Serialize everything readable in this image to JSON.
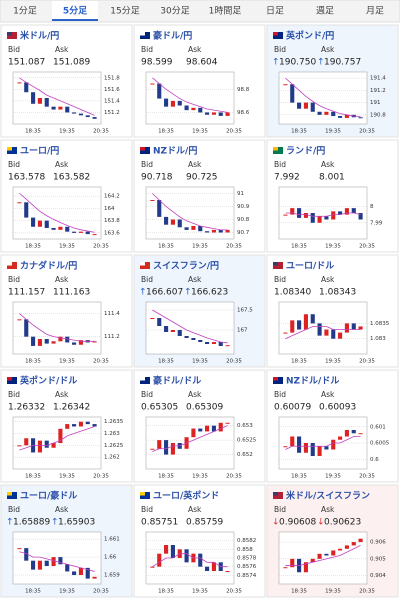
{
  "tabs": {
    "items": [
      "1分足",
      "5分足",
      "15分足",
      "30分足",
      "1時間足",
      "日足",
      "週足",
      "月足"
    ],
    "active": 1
  },
  "labels": {
    "bid": "Bid",
    "ask": "Ask"
  },
  "time_labels": [
    "18:35",
    "19:35",
    "20:35"
  ],
  "panels": [
    {
      "title": "米ドル/円",
      "bid": "151.087",
      "ask": "151.089",
      "ylim": [
        151.0,
        151.9
      ],
      "yticks": [
        151.8,
        151.6,
        151.4,
        151.2
      ],
      "closes": [
        151.72,
        151.55,
        151.35,
        151.45,
        151.3,
        151.25,
        151.3,
        151.2,
        151.18,
        151.15,
        151.12,
        151.09
      ],
      "ma": [
        151.8,
        151.72,
        151.65,
        151.58,
        151.5,
        151.45,
        151.4,
        151.35,
        151.3,
        151.25,
        151.2,
        151.15
      ]
    },
    {
      "title": "豪ドル/円",
      "bid": "98.599",
      "ask": "98.604",
      "ylim": [
        98.5,
        98.95
      ],
      "yticks": [
        98.8,
        98.6
      ],
      "closes": [
        98.85,
        98.72,
        98.65,
        98.7,
        98.66,
        98.62,
        98.64,
        98.6,
        98.58,
        98.6,
        98.57,
        98.6
      ],
      "ma": [
        98.9,
        98.85,
        98.8,
        98.76,
        98.72,
        98.69,
        98.67,
        98.65,
        98.63,
        98.62,
        98.61,
        98.6
      ]
    },
    {
      "title": "英ポンド/円",
      "trend": "↑",
      "bid": "190.750",
      "ask": "190.757",
      "ylim": [
        190.65,
        191.5
      ],
      "yticks": [
        191.4,
        191.2,
        191,
        190.8
      ],
      "closes": [
        191.3,
        191.0,
        190.9,
        191.0,
        190.85,
        190.8,
        190.85,
        190.78,
        190.75,
        190.8,
        190.76,
        190.75
      ],
      "ma": [
        191.4,
        191.3,
        191.2,
        191.1,
        191.02,
        190.95,
        190.9,
        190.86,
        190.82,
        190.8,
        190.78,
        190.77
      ]
    },
    {
      "title": "ユーロ/円",
      "bid": "163.578",
      "ask": "163.582",
      "ylim": [
        163.5,
        164.35
      ],
      "yticks": [
        164.2,
        164,
        163.8,
        163.6
      ],
      "closes": [
        164.1,
        163.85,
        163.7,
        163.8,
        163.68,
        163.65,
        163.7,
        163.62,
        163.6,
        163.62,
        163.58,
        163.58
      ],
      "ma": [
        164.25,
        164.15,
        164.05,
        163.95,
        163.88,
        163.82,
        163.77,
        163.72,
        163.68,
        163.65,
        163.63,
        163.61
      ]
    },
    {
      "title": "NZドル/円",
      "bid": "90.718",
      "ask": "90.725",
      "ylim": [
        90.65,
        91.05
      ],
      "yticks": [
        91,
        90.9,
        90.8,
        90.7
      ],
      "closes": [
        90.95,
        90.82,
        90.76,
        90.8,
        90.74,
        90.72,
        90.75,
        90.71,
        90.7,
        90.72,
        90.7,
        90.72
      ],
      "ma": [
        91.0,
        90.95,
        90.9,
        90.86,
        90.82,
        90.79,
        90.77,
        90.75,
        90.74,
        90.73,
        90.72,
        90.72
      ]
    },
    {
      "title": "ランド/円",
      "bid": "7.992",
      "ask": "8.001",
      "ylim": [
        7.98,
        8.012
      ],
      "yticks": [
        8,
        7.99
      ],
      "closes": [
        7.995,
        7.999,
        7.993,
        7.996,
        7.99,
        7.994,
        7.992,
        7.997,
        7.995,
        7.999,
        7.996,
        7.992
      ],
      "ma": [
        7.996,
        7.996,
        7.995,
        7.995,
        7.994,
        7.994,
        7.994,
        7.995,
        7.995,
        7.996,
        7.996,
        7.995
      ]
    },
    {
      "title": "カナダドル/円",
      "bid": "111.157",
      "ask": "111.163",
      "ylim": [
        111.05,
        111.5
      ],
      "yticks": [
        111.4,
        111.2
      ],
      "closes": [
        111.35,
        111.2,
        111.12,
        111.18,
        111.14,
        111.16,
        111.2,
        111.15,
        111.13,
        111.17,
        111.15,
        111.16
      ],
      "ma": [
        111.4,
        111.35,
        111.3,
        111.26,
        111.22,
        111.2,
        111.19,
        111.18,
        111.17,
        111.16,
        111.16,
        111.16
      ]
    },
    {
      "title": "スイスフラン/円",
      "trend": "↑",
      "bid": "166.607",
      "ask": "166.623",
      "ylim": [
        166.4,
        167.7
      ],
      "yticks": [
        167.5,
        167
      ],
      "closes": [
        167.3,
        167.1,
        166.95,
        167.0,
        166.85,
        166.8,
        166.75,
        166.7,
        166.65,
        166.7,
        166.6,
        166.62
      ],
      "ma": [
        167.5,
        167.4,
        167.3,
        167.2,
        167.1,
        167.0,
        166.93,
        166.87,
        166.8,
        166.75,
        166.7,
        166.68
      ]
    },
    {
      "title": "ユーロ/ドル",
      "bid": "1.08340",
      "ask": "1.08343",
      "ylim": [
        1.0825,
        1.0842
      ],
      "yticks": [
        1.0835,
        1.083
      ],
      "closes": [
        1.0832,
        1.0836,
        1.0833,
        1.0838,
        1.0835,
        1.0831,
        1.0833,
        1.083,
        1.0832,
        1.0835,
        1.0833,
        1.0834
      ],
      "ma": [
        1.083,
        1.0831,
        1.0832,
        1.0833,
        1.0834,
        1.0834,
        1.0834,
        1.0833,
        1.0833,
        1.0833,
        1.0833,
        1.0833
      ]
    },
    {
      "title": "英ポンド/ドル",
      "bid": "1.26332",
      "ask": "1.26342",
      "ylim": [
        1.2615,
        1.2637
      ],
      "yticks": [
        1.2635,
        1.263,
        1.2625,
        1.262
      ],
      "closes": [
        1.2625,
        1.2628,
        1.2622,
        1.2627,
        1.2624,
        1.2626,
        1.2632,
        1.2634,
        1.2633,
        1.2635,
        1.2634,
        1.2633
      ],
      "ma": [
        1.2623,
        1.2624,
        1.2625,
        1.2625,
        1.2625,
        1.2626,
        1.2627,
        1.2629,
        1.263,
        1.2631,
        1.2632,
        1.2633
      ]
    },
    {
      "title": "豪ドル/ドル",
      "bid": "0.65305",
      "ask": "0.65309",
      "ylim": [
        0.6515,
        0.6533
      ],
      "yticks": [
        0.653,
        0.6525,
        0.652
      ],
      "closes": [
        0.6522,
        0.6525,
        0.652,
        0.6524,
        0.6522,
        0.6526,
        0.6529,
        0.6528,
        0.653,
        0.6528,
        0.6531,
        0.6531
      ],
      "ma": [
        0.6521,
        0.6522,
        0.6522,
        0.6523,
        0.6523,
        0.6524,
        0.6525,
        0.6526,
        0.6527,
        0.6528,
        0.6529,
        0.653
      ]
    },
    {
      "title": "NZドル/ドル",
      "bid": "0.60079",
      "ask": "0.60093",
      "ylim": [
        0.5997,
        0.6013
      ],
      "yticks": [
        0.601,
        0.6005,
        0.6
      ],
      "closes": [
        0.6004,
        0.6007,
        0.6002,
        0.6005,
        0.6001,
        0.6004,
        0.6003,
        0.6006,
        0.6007,
        0.6009,
        0.6008,
        0.6008
      ],
      "ma": [
        0.6003,
        0.6004,
        0.6004,
        0.6004,
        0.6004,
        0.6004,
        0.6004,
        0.6005,
        0.6005,
        0.6006,
        0.6007,
        0.6007
      ]
    },
    {
      "title": "ユーロ/豪ドル",
      "trend": "↑",
      "bid": "1.65889",
      "ask": "1.65903",
      "ylim": [
        1.6585,
        1.6614
      ],
      "yticks": [
        1.661,
        1.66,
        1.659
      ],
      "closes": [
        1.6605,
        1.6598,
        1.6593,
        1.6598,
        1.6595,
        1.66,
        1.6596,
        1.6592,
        1.659,
        1.6594,
        1.6588,
        1.6589
      ],
      "ma": [
        1.6603,
        1.6602,
        1.66,
        1.66,
        1.6599,
        1.6598,
        1.6597,
        1.6596,
        1.6595,
        1.6594,
        1.6593,
        1.6592
      ]
    },
    {
      "title": "ユーロ/英ポンド",
      "bid": "0.85751",
      "ask": "0.85759",
      "ylim": [
        0.8572,
        0.8584
      ],
      "yticks": [
        0.8582,
        0.858,
        0.8578,
        0.8576,
        0.8574
      ],
      "closes": [
        0.8576,
        0.8579,
        0.8581,
        0.8578,
        0.858,
        0.8577,
        0.8579,
        0.8576,
        0.8575,
        0.8577,
        0.8575,
        0.8575
      ],
      "ma": [
        0.8576,
        0.8577,
        0.8578,
        0.8578,
        0.8579,
        0.8579,
        0.8578,
        0.8578,
        0.8577,
        0.8577,
        0.8576,
        0.8576
      ]
    },
    {
      "title": "米ドル/スイスフラン",
      "trend": "↓",
      "bid": "0.90608",
      "ask": "0.90623",
      "ylim": [
        0.9035,
        0.9066
      ],
      "yticks": [
        0.906,
        0.905,
        0.904
      ],
      "closes": [
        0.9045,
        0.905,
        0.9042,
        0.9048,
        0.905,
        0.9053,
        0.9052,
        0.9055,
        0.9056,
        0.9058,
        0.906,
        0.9062
      ],
      "ma": [
        0.9046,
        0.9046,
        0.9046,
        0.9047,
        0.9048,
        0.9049,
        0.905,
        0.9051,
        0.9052,
        0.9054,
        0.9056,
        0.9058
      ]
    }
  ]
}
